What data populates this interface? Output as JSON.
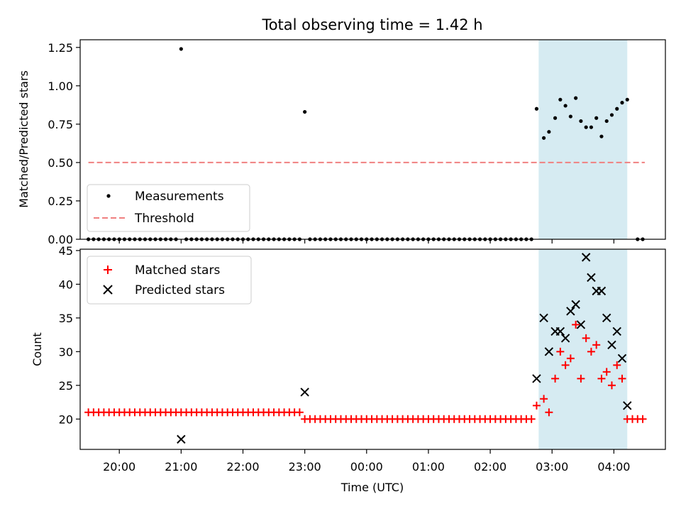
{
  "chart_data": [
    {
      "type": "scatter",
      "title": "Total observing time = 1.42 h",
      "ylabel": "Matched/Predicted stars",
      "xlabel": "",
      "ylim": [
        0,
        1.3
      ],
      "yticks": [
        {
          "v": 0.0,
          "label": "0.00"
        },
        {
          "v": 0.25,
          "label": "0.25"
        },
        {
          "v": 0.5,
          "label": "0.50"
        },
        {
          "v": 0.75,
          "label": "0.75"
        },
        {
          "v": 1.0,
          "label": "1.00"
        },
        {
          "v": 1.25,
          "label": "1.25"
        }
      ],
      "xlim": [
        "19:22",
        "04:50"
      ],
      "shaded_span": [
        "02:47",
        "04:13"
      ],
      "shade_color": "#add8e6",
      "legend_position": "lower-left",
      "series": [
        {
          "name": "Measurements",
          "marker": "dot",
          "color": "#000000",
          "points": [
            [
              "19:30",
              0
            ],
            [
              "19:35",
              0
            ],
            [
              "19:40",
              0
            ],
            [
              "19:45",
              0
            ],
            [
              "19:50",
              0
            ],
            [
              "19:55",
              0
            ],
            [
              "20:00",
              0
            ],
            [
              "20:05",
              0
            ],
            [
              "20:10",
              0
            ],
            [
              "20:15",
              0
            ],
            [
              "20:20",
              0
            ],
            [
              "20:25",
              0
            ],
            [
              "20:30",
              0
            ],
            [
              "20:35",
              0
            ],
            [
              "20:40",
              0
            ],
            [
              "20:45",
              0
            ],
            [
              "20:50",
              0
            ],
            [
              "20:55",
              0
            ],
            [
              "21:00",
              1.24
            ],
            [
              "21:05",
              0
            ],
            [
              "21:10",
              0
            ],
            [
              "21:15",
              0
            ],
            [
              "21:20",
              0
            ],
            [
              "21:25",
              0
            ],
            [
              "21:30",
              0
            ],
            [
              "21:35",
              0
            ],
            [
              "21:40",
              0
            ],
            [
              "21:45",
              0
            ],
            [
              "21:50",
              0
            ],
            [
              "21:55",
              0
            ],
            [
              "22:00",
              0
            ],
            [
              "22:05",
              0
            ],
            [
              "22:10",
              0
            ],
            [
              "22:15",
              0
            ],
            [
              "22:20",
              0
            ],
            [
              "22:25",
              0
            ],
            [
              "22:30",
              0
            ],
            [
              "22:35",
              0
            ],
            [
              "22:40",
              0
            ],
            [
              "22:45",
              0
            ],
            [
              "22:50",
              0
            ],
            [
              "22:55",
              0
            ],
            [
              "23:00",
              0.83
            ],
            [
              "23:05",
              0
            ],
            [
              "23:10",
              0
            ],
            [
              "23:15",
              0
            ],
            [
              "23:20",
              0
            ],
            [
              "23:25",
              0
            ],
            [
              "23:30",
              0
            ],
            [
              "23:35",
              0
            ],
            [
              "23:40",
              0
            ],
            [
              "23:45",
              0
            ],
            [
              "23:50",
              0
            ],
            [
              "23:55",
              0
            ],
            [
              "00:00",
              0
            ],
            [
              "00:05",
              0
            ],
            [
              "00:10",
              0
            ],
            [
              "00:15",
              0
            ],
            [
              "00:20",
              0
            ],
            [
              "00:25",
              0
            ],
            [
              "00:30",
              0
            ],
            [
              "00:35",
              0
            ],
            [
              "00:40",
              0
            ],
            [
              "00:45",
              0
            ],
            [
              "00:50",
              0
            ],
            [
              "00:55",
              0
            ],
            [
              "01:00",
              0
            ],
            [
              "01:05",
              0
            ],
            [
              "01:10",
              0
            ],
            [
              "01:15",
              0
            ],
            [
              "01:20",
              0
            ],
            [
              "01:25",
              0
            ],
            [
              "01:30",
              0
            ],
            [
              "01:35",
              0
            ],
            [
              "01:40",
              0
            ],
            [
              "01:45",
              0
            ],
            [
              "01:50",
              0
            ],
            [
              "01:55",
              0
            ],
            [
              "02:00",
              0
            ],
            [
              "02:05",
              0
            ],
            [
              "02:10",
              0
            ],
            [
              "02:15",
              0
            ],
            [
              "02:20",
              0
            ],
            [
              "02:25",
              0
            ],
            [
              "02:30",
              0
            ],
            [
              "02:35",
              0
            ],
            [
              "02:40",
              0
            ],
            [
              "02:45",
              0.85
            ],
            [
              "02:52",
              0.66
            ],
            [
              "02:57",
              0.7
            ],
            [
              "03:03",
              0.79
            ],
            [
              "03:08",
              0.91
            ],
            [
              "03:13",
              0.87
            ],
            [
              "03:18",
              0.8
            ],
            [
              "03:23",
              0.92
            ],
            [
              "03:28",
              0.77
            ],
            [
              "03:33",
              0.73
            ],
            [
              "03:38",
              0.73
            ],
            [
              "03:43",
              0.79
            ],
            [
              "03:48",
              0.67
            ],
            [
              "03:53",
              0.77
            ],
            [
              "03:58",
              0.81
            ],
            [
              "04:03",
              0.85
            ],
            [
              "04:08",
              0.89
            ],
            [
              "04:13",
              0.91
            ],
            [
              "04:23",
              0
            ],
            [
              "04:28",
              0
            ]
          ]
        },
        {
          "name": "Threshold",
          "line": "dashed",
          "color": "#f08080",
          "points": [
            [
              "19:30",
              0.5
            ],
            [
              "04:30",
              0.5
            ]
          ]
        }
      ]
    },
    {
      "type": "scatter",
      "title": "",
      "ylabel": "Count",
      "xlabel": "Time (UTC)",
      "ylim": [
        15.5,
        45.2
      ],
      "yticks": [
        {
          "v": 20,
          "label": "20"
        },
        {
          "v": 25,
          "label": "25"
        },
        {
          "v": 30,
          "label": "30"
        },
        {
          "v": 35,
          "label": "35"
        },
        {
          "v": 40,
          "label": "40"
        },
        {
          "v": 45,
          "label": "45"
        }
      ],
      "xlim": [
        "19:22",
        "04:50"
      ],
      "xticks": [
        "20:00",
        "21:00",
        "22:00",
        "23:00",
        "00:00",
        "01:00",
        "02:00",
        "03:00",
        "04:00"
      ],
      "shaded_span": [
        "02:47",
        "04:13"
      ],
      "shade_color": "#add8e6",
      "legend_position": "upper-left",
      "series": [
        {
          "name": "Matched stars",
          "marker": "plus",
          "color": "#ff0000",
          "points": [
            [
              "19:30",
              21
            ],
            [
              "19:35",
              21
            ],
            [
              "19:40",
              21
            ],
            [
              "19:45",
              21
            ],
            [
              "19:50",
              21
            ],
            [
              "19:55",
              21
            ],
            [
              "20:00",
              21
            ],
            [
              "20:05",
              21
            ],
            [
              "20:10",
              21
            ],
            [
              "20:15",
              21
            ],
            [
              "20:20",
              21
            ],
            [
              "20:25",
              21
            ],
            [
              "20:30",
              21
            ],
            [
              "20:35",
              21
            ],
            [
              "20:40",
              21
            ],
            [
              "20:45",
              21
            ],
            [
              "20:50",
              21
            ],
            [
              "20:55",
              21
            ],
            [
              "21:00",
              21
            ],
            [
              "21:05",
              21
            ],
            [
              "21:10",
              21
            ],
            [
              "21:15",
              21
            ],
            [
              "21:20",
              21
            ],
            [
              "21:25",
              21
            ],
            [
              "21:30",
              21
            ],
            [
              "21:35",
              21
            ],
            [
              "21:40",
              21
            ],
            [
              "21:45",
              21
            ],
            [
              "21:50",
              21
            ],
            [
              "21:55",
              21
            ],
            [
              "22:00",
              21
            ],
            [
              "22:05",
              21
            ],
            [
              "22:10",
              21
            ],
            [
              "22:15",
              21
            ],
            [
              "22:20",
              21
            ],
            [
              "22:25",
              21
            ],
            [
              "22:30",
              21
            ],
            [
              "22:35",
              21
            ],
            [
              "22:40",
              21
            ],
            [
              "22:45",
              21
            ],
            [
              "22:50",
              21
            ],
            [
              "22:55",
              21
            ],
            [
              "23:00",
              20
            ],
            [
              "23:05",
              20
            ],
            [
              "23:10",
              20
            ],
            [
              "23:15",
              20
            ],
            [
              "23:20",
              20
            ],
            [
              "23:25",
              20
            ],
            [
              "23:30",
              20
            ],
            [
              "23:35",
              20
            ],
            [
              "23:40",
              20
            ],
            [
              "23:45",
              20
            ],
            [
              "23:50",
              20
            ],
            [
              "23:55",
              20
            ],
            [
              "00:00",
              20
            ],
            [
              "00:05",
              20
            ],
            [
              "00:10",
              20
            ],
            [
              "00:15",
              20
            ],
            [
              "00:20",
              20
            ],
            [
              "00:25",
              20
            ],
            [
              "00:30",
              20
            ],
            [
              "00:35",
              20
            ],
            [
              "00:40",
              20
            ],
            [
              "00:45",
              20
            ],
            [
              "00:50",
              20
            ],
            [
              "00:55",
              20
            ],
            [
              "01:00",
              20
            ],
            [
              "01:05",
              20
            ],
            [
              "01:10",
              20
            ],
            [
              "01:15",
              20
            ],
            [
              "01:20",
              20
            ],
            [
              "01:25",
              20
            ],
            [
              "01:30",
              20
            ],
            [
              "01:35",
              20
            ],
            [
              "01:40",
              20
            ],
            [
              "01:45",
              20
            ],
            [
              "01:50",
              20
            ],
            [
              "01:55",
              20
            ],
            [
              "02:00",
              20
            ],
            [
              "02:05",
              20
            ],
            [
              "02:10",
              20
            ],
            [
              "02:15",
              20
            ],
            [
              "02:20",
              20
            ],
            [
              "02:25",
              20
            ],
            [
              "02:30",
              20
            ],
            [
              "02:35",
              20
            ],
            [
              "02:40",
              20
            ],
            [
              "02:45",
              22
            ],
            [
              "02:52",
              23
            ],
            [
              "02:57",
              21
            ],
            [
              "03:03",
              26
            ],
            [
              "03:08",
              30
            ],
            [
              "03:13",
              28
            ],
            [
              "03:18",
              29
            ],
            [
              "03:23",
              34
            ],
            [
              "03:28",
              26
            ],
            [
              "03:33",
              32
            ],
            [
              "03:38",
              30
            ],
            [
              "03:43",
              31
            ],
            [
              "03:48",
              26
            ],
            [
              "03:53",
              27
            ],
            [
              "03:58",
              25
            ],
            [
              "04:03",
              28
            ],
            [
              "04:08",
              26
            ],
            [
              "04:13",
              20
            ],
            [
              "04:18",
              20
            ],
            [
              "04:23",
              20
            ],
            [
              "04:28",
              20
            ]
          ]
        },
        {
          "name": "Predicted stars",
          "marker": "x",
          "color": "#000000",
          "points": [
            [
              "21:00",
              17
            ],
            [
              "23:00",
              24
            ],
            [
              "02:45",
              26
            ],
            [
              "02:52",
              35
            ],
            [
              "02:57",
              30
            ],
            [
              "03:03",
              33
            ],
            [
              "03:08",
              33
            ],
            [
              "03:13",
              32
            ],
            [
              "03:18",
              36
            ],
            [
              "03:23",
              37
            ],
            [
              "03:28",
              34
            ],
            [
              "03:33",
              44
            ],
            [
              "03:38",
              41
            ],
            [
              "03:43",
              39
            ],
            [
              "03:48",
              39
            ],
            [
              "03:53",
              35
            ],
            [
              "03:58",
              31
            ],
            [
              "04:03",
              33
            ],
            [
              "04:08",
              29
            ],
            [
              "04:13",
              22
            ]
          ]
        }
      ]
    }
  ]
}
